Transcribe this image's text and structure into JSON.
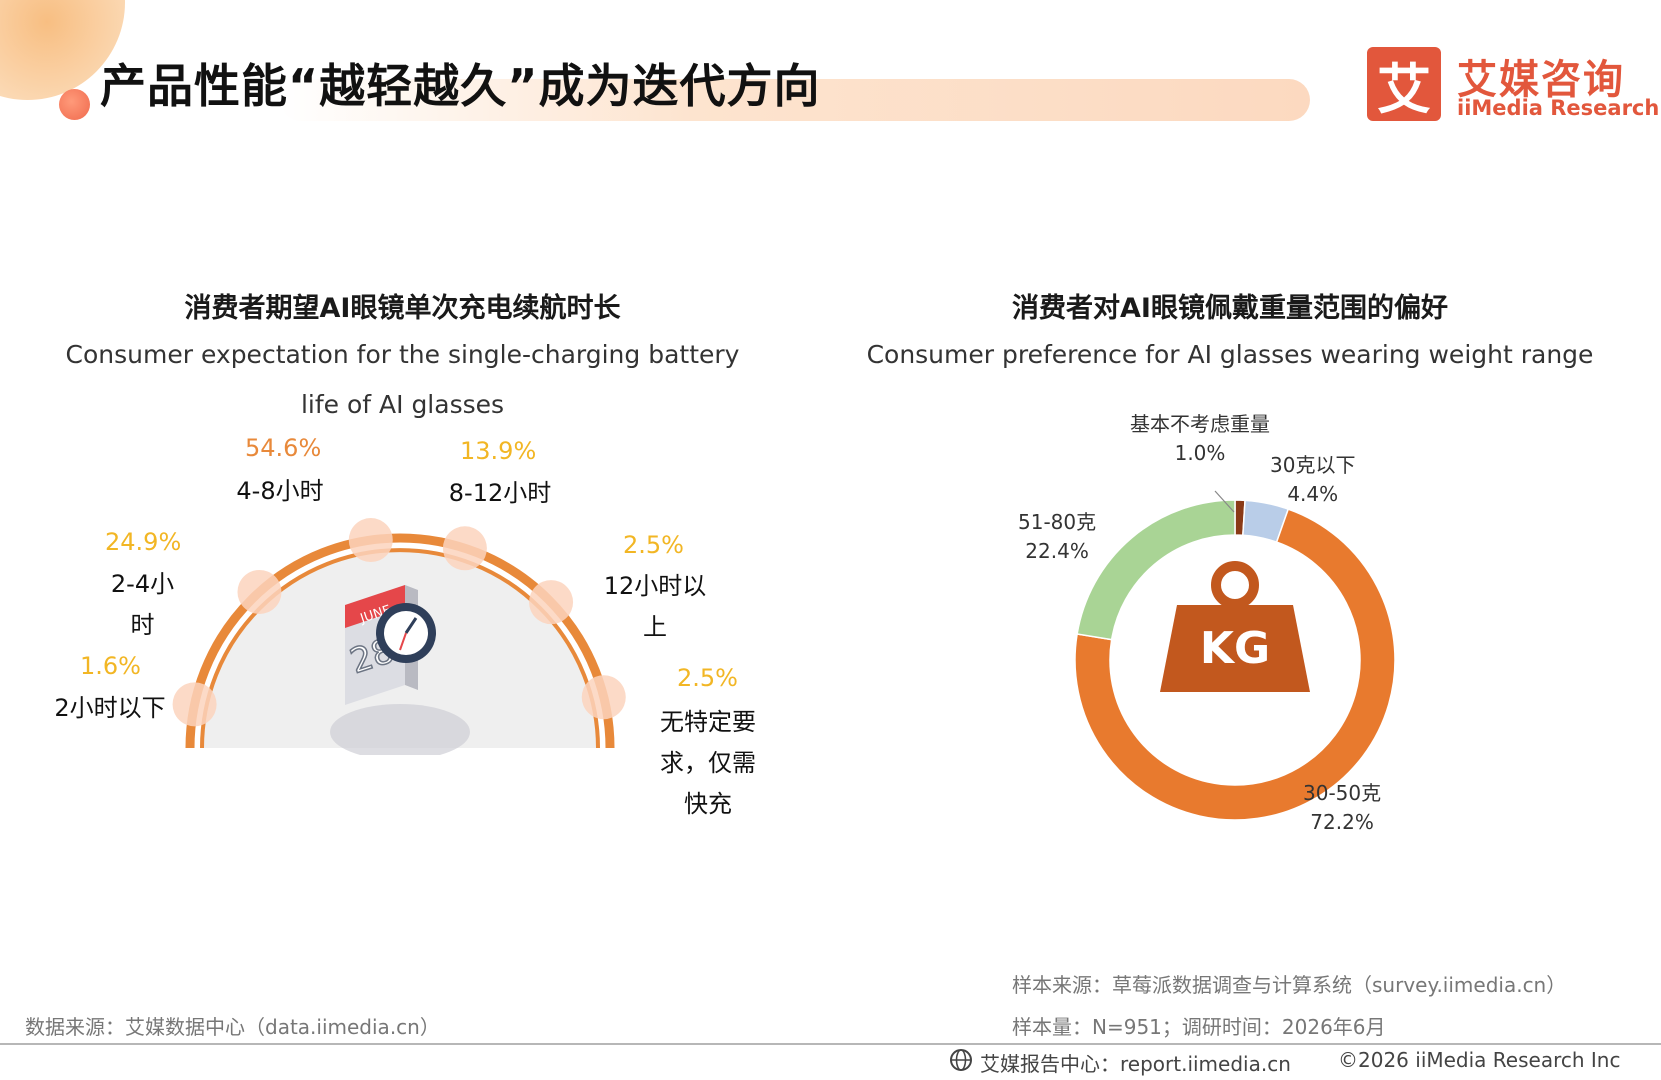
{
  "header": {
    "title": "产品性能“越轻越久”成为迭代方向",
    "logo_mark": "艾",
    "logo_cn": "艾媒咨询",
    "logo_en": "iiMedia Research"
  },
  "left_chart": {
    "title": "消费者期望AI眼镜单次充电续航时长",
    "subtitle_line1": "Consumer expectation for the single-charging battery",
    "subtitle_line2": "life of AI glasses",
    "calendar_month": "JUNE",
    "calendar_day": "28"
  },
  "right_chart": {
    "title": "消费者对AI眼镜佩戴重量范围的偏好",
    "subtitle": "Consumer preference for AI glasses wearing weight range",
    "center_label": "KG"
  },
  "chart_data": [
    {
      "type": "bar",
      "title": "消费者期望AI眼镜单次充电续航时长",
      "categories": [
        "2小时以下",
        "2-4小时",
        "4-8小时",
        "8-12小时",
        "12小时以上",
        "无特定要求，仅需快充"
      ],
      "values": [
        1.6,
        24.9,
        54.6,
        13.9,
        2.5,
        2.5
      ],
      "value_labels": [
        "1.6%",
        "24.9%",
        "54.6%",
        "13.9%",
        "2.5%",
        "2.5%"
      ],
      "label_lines": [
        [
          "2小时以下"
        ],
        [
          "2-4小",
          "时"
        ],
        [
          "4-8小时"
        ],
        [
          "8-12小时"
        ],
        [
          "12小时以",
          "上"
        ],
        [
          "无特定要",
          "求，仅需",
          "快充"
        ]
      ],
      "colors": {
        "highlight": "#e8893a",
        "normal": "#f2b624",
        "arc": "#e8893a"
      }
    },
    {
      "type": "pie",
      "title": "消费者对AI眼镜佩戴重量范围的偏好",
      "categories": [
        "基本不考虑重量",
        "30克以下",
        "30-50克",
        "51-80克"
      ],
      "values": [
        1.0,
        4.4,
        72.2,
        22.4
      ],
      "value_labels": [
        "1.0%",
        "4.4%",
        "72.2%",
        "22.4%"
      ],
      "colors": [
        "#8a3a16",
        "#b9cde8",
        "#e87a2e",
        "#a9d495"
      ]
    }
  ],
  "footer": {
    "source_left": "数据来源：艾媒数据中心（data.iimedia.cn）",
    "sample_source": "样本来源：草莓派数据调查与计算系统（survey.iimedia.cn）",
    "sample_size": "样本量：N=951；调研时间：2026年6月",
    "report_center": "艾媒报告中心：report.iimedia.cn",
    "copyright": "©2026  iiMedia Research  Inc"
  }
}
